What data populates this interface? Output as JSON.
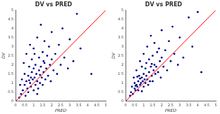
{
  "chart_data": [
    {
      "type": "scatter",
      "title": "DV vs PRED",
      "x_label": "PRED",
      "y_label": "DV",
      "xlim": [
        0,
        5
      ],
      "ylim": [
        0,
        5
      ],
      "xticks": [
        0,
        0.5,
        1,
        1.5,
        2,
        2.5,
        3,
        3.5,
        4,
        4.5,
        5
      ],
      "yticks": [
        0,
        0.5,
        1,
        1.5,
        2,
        2.5,
        3,
        3.5,
        4,
        4.5,
        5
      ],
      "grid": false,
      "series": [
        {
          "type": "scatter",
          "color": "#00008b",
          "marker": "circle",
          "x": [
            0.3,
            0.35,
            0.4,
            0.45,
            0.5,
            0.5,
            0.55,
            0.6,
            0.6,
            0.65,
            0.7,
            0.7,
            0.75,
            0.8,
            0.8,
            0.85,
            0.9,
            0.9,
            0.95,
            1.0,
            1.0,
            1.0,
            1.05,
            1.1,
            1.1,
            1.15,
            1.2,
            1.2,
            1.25,
            1.3,
            1.3,
            1.35,
            1.4,
            1.4,
            1.45,
            1.5,
            1.5,
            1.55,
            1.6,
            1.6,
            1.65,
            1.7,
            1.75,
            1.8,
            1.85,
            1.9,
            1.95,
            2.0,
            2.0,
            2.1,
            2.2,
            2.3,
            2.4,
            2.5,
            2.6,
            2.7,
            2.9,
            3.0,
            3.2,
            3.4,
            3.6,
            4.2,
            0.2,
            0.25,
            1.2,
            0.85,
            1.05,
            1.55,
            0.75,
            1.35
          ],
          "values": [
            0.4,
            1.2,
            0.6,
            2.1,
            0.9,
            1.5,
            0.3,
            1.1,
            2.6,
            0.7,
            1.4,
            0.5,
            1.9,
            1.0,
            3.1,
            0.8,
            1.6,
            2.3,
            1.2,
            0.6,
            1.8,
            2.9,
            1.3,
            0.9,
            2.0,
            1.5,
            3.5,
            1.1,
            0.7,
            1.7,
            2.4,
            1.0,
            1.9,
            4.2,
            1.3,
            2.7,
            0.9,
            1.6,
            2.1,
            3.3,
            1.2,
            1.8,
            2.5,
            1.4,
            3.0,
            2.0,
            1.1,
            2.3,
            3.8,
            1.7,
            2.6,
            1.5,
            3.1,
            2.0,
            4.0,
            2.4,
            1.8,
            3.4,
            2.2,
            4.8,
            2.9,
            1.5,
            0.2,
            0.9,
            0.4,
            1.3,
            2.6,
            2.2,
            1.15,
            1.45
          ]
        },
        {
          "type": "line",
          "color": "#ff0000",
          "line_style": "solid",
          "x": [
            0,
            5
          ],
          "values": [
            0,
            5
          ]
        }
      ]
    },
    {
      "type": "scatter",
      "title": "DV vs PRED",
      "x_label": "PRED",
      "y_label": "DV",
      "xlim": [
        0,
        5
      ],
      "ylim": [
        0,
        5
      ],
      "xticks": [
        0,
        0.5,
        1,
        1.5,
        2,
        2.5,
        3,
        3.5,
        4,
        4.5,
        5
      ],
      "yticks": [
        0,
        0.5,
        1,
        1.5,
        2,
        2.5,
        3,
        3.5,
        4,
        4.5,
        5
      ],
      "grid": false,
      "series": [
        {
          "type": "scatter",
          "color": "#00008b",
          "marker": "circle",
          "x": [
            0.3,
            0.35,
            0.4,
            0.45,
            0.5,
            0.5,
            0.55,
            0.6,
            0.6,
            0.65,
            0.7,
            0.7,
            0.75,
            0.8,
            0.8,
            0.85,
            0.9,
            0.9,
            0.95,
            1.0,
            1.0,
            1.0,
            1.05,
            1.1,
            1.1,
            1.15,
            1.2,
            1.2,
            1.25,
            1.3,
            1.3,
            1.35,
            1.4,
            1.4,
            1.45,
            1.5,
            1.5,
            1.55,
            1.6,
            1.6,
            1.65,
            1.7,
            1.75,
            1.8,
            1.85,
            1.9,
            1.95,
            2.0,
            2.0,
            2.1,
            2.2,
            2.3,
            2.4,
            2.5,
            2.6,
            2.7,
            2.9,
            3.0,
            3.2,
            3.5,
            3.7,
            4.2,
            4.0,
            0.25,
            0.9,
            1.15,
            0.65,
            1.45,
            0.55,
            0.8
          ],
          "values": [
            0.5,
            0.8,
            0.4,
            1.3,
            0.7,
            1.0,
            0.6,
            0.9,
            1.7,
            0.8,
            1.1,
            0.6,
            1.4,
            0.9,
            2.2,
            1.0,
            1.3,
            1.9,
            1.1,
            0.8,
            1.5,
            2.6,
            1.2,
            1.0,
            1.8,
            1.4,
            3.0,
            1.2,
            0.9,
            1.6,
            2.3,
            1.1,
            1.9,
            3.6,
            1.4,
            2.5,
            1.1,
            1.7,
            2.0,
            3.2,
            1.5,
            1.9,
            2.7,
            1.6,
            2.9,
            2.2,
            1.3,
            2.4,
            3.9,
            1.9,
            2.8,
            1.7,
            3.3,
            2.2,
            4.1,
            2.6,
            2.0,
            3.5,
            2.4,
            4.6,
            3.0,
            1.6,
            4.9,
            0.3,
            0.55,
            2.1,
            1.35,
            2.05,
            0.85,
            1.25
          ]
        },
        {
          "type": "line",
          "color": "#ff0000",
          "line_style": "solid",
          "x": [
            0,
            5
          ],
          "values": [
            0,
            5
          ]
        }
      ]
    }
  ]
}
